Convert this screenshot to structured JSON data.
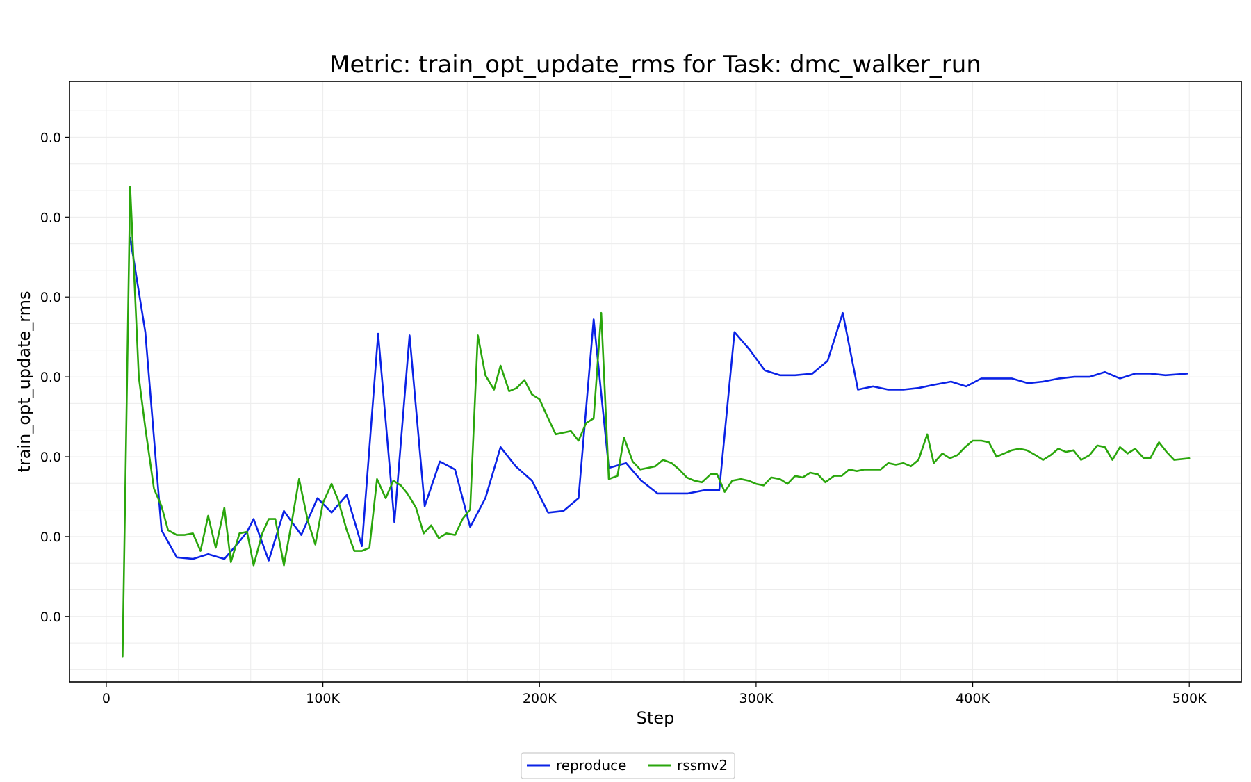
{
  "chart_data": {
    "type": "line",
    "title": "Metric: train_opt_update_rms for Task: dmc_walker_run",
    "xlabel": "Step",
    "ylabel": "train_opt_update_rms",
    "x_tick_values": [
      0,
      100000,
      200000,
      300000,
      400000,
      500000
    ],
    "x_tick_labels": [
      "0",
      "100K",
      "200K",
      "300K",
      "400K",
      "500K"
    ],
    "y_tick_values": [
      -0.5,
      0.0,
      0.5,
      1.0,
      1.5,
      2.0,
      2.5
    ],
    "y_tick_labels": [
      "0.0",
      "0.0",
      "0.0",
      "0.0",
      "0.0",
      "0.0",
      "0.0"
    ],
    "xlim": [
      -17000,
      524000
    ],
    "ylim": [
      -0.91,
      2.85
    ],
    "grid": true,
    "legend_position": "bottom-center",
    "series": [
      {
        "name": "reproduce",
        "color": "#0a22e6",
        "x": [
          11000,
          18000,
          25500,
          32500,
          40000,
          47000,
          54500,
          61500,
          65000,
          68000,
          75000,
          82000,
          90000,
          97500,
          104000,
          111000,
          118000,
          125500,
          133000,
          140000,
          147000,
          154000,
          161000,
          168000,
          175000,
          182000,
          189000,
          196500,
          204000,
          211000,
          218000,
          225000,
          232000,
          240000,
          247000,
          254500,
          261500,
          268500,
          276000,
          283000,
          290000,
          297000,
          304000,
          311000,
          318000,
          326000,
          333000,
          340000,
          347000,
          354000,
          361000,
          368000,
          375000,
          382000,
          390000,
          397000,
          404000,
          411000,
          418000,
          425500,
          432500,
          440000,
          447000,
          454000,
          461000,
          468000,
          475000,
          482000,
          489000,
          499000
        ],
        "y": [
          1.87,
          1.28,
          0.04,
          -0.13,
          -0.14,
          -0.11,
          -0.14,
          -0.03,
          0.03,
          0.11,
          -0.15,
          0.16,
          0.01,
          0.24,
          0.15,
          0.26,
          -0.06,
          1.27,
          0.09,
          1.26,
          0.19,
          0.47,
          0.42,
          0.06,
          0.24,
          0.56,
          0.44,
          0.35,
          0.15,
          0.16,
          0.24,
          1.36,
          0.43,
          0.46,
          0.35,
          0.27,
          0.27,
          0.27,
          0.29,
          0.29,
          1.28,
          1.17,
          1.04,
          1.01,
          1.01,
          1.02,
          1.1,
          1.4,
          0.92,
          0.94,
          0.92,
          0.92,
          0.93,
          0.95,
          0.97,
          0.94,
          0.99,
          0.99,
          0.99,
          0.96,
          0.97,
          0.99,
          1.0,
          1.0,
          1.03,
          0.99,
          1.02,
          1.02,
          1.01,
          1.02
        ]
      },
      {
        "name": "rssmv2",
        "color": "#2aa60c",
        "x": [
          7500,
          11000,
          15000,
          18000,
          22000,
          25500,
          28500,
          32500,
          36000,
          40000,
          43500,
          47000,
          50500,
          54500,
          57500,
          61500,
          65000,
          68000,
          72000,
          75000,
          78000,
          82000,
          85500,
          89000,
          93000,
          96500,
          100000,
          104000,
          107000,
          111000,
          114500,
          118000,
          121500,
          125000,
          129000,
          132500,
          136000,
          139000,
          143000,
          146500,
          150000,
          153500,
          157000,
          161000,
          164500,
          168000,
          171500,
          175000,
          179000,
          182000,
          186000,
          189500,
          193000,
          196500,
          200000,
          204000,
          207500,
          211000,
          214500,
          218000,
          221500,
          225000,
          228500,
          232000,
          236000,
          239000,
          243000,
          246500,
          250000,
          253500,
          257000,
          261000,
          264500,
          268000,
          271500,
          275000,
          279000,
          282000,
          285500,
          289000,
          293000,
          296500,
          300000,
          303500,
          307000,
          311000,
          314500,
          318000,
          321500,
          325000,
          328500,
          332000,
          336000,
          339500,
          343000,
          346500,
          350000,
          354000,
          357500,
          361000,
          364500,
          368000,
          371500,
          375000,
          379000,
          382000,
          386000,
          389500,
          393000,
          396500,
          400000,
          404000,
          407500,
          411000,
          414500,
          418000,
          421500,
          425000,
          429000,
          432500,
          436000,
          439500,
          443000,
          446500,
          450000,
          454000,
          457500,
          461000,
          464500,
          468000,
          471500,
          475000,
          479000,
          482000,
          486000,
          489500,
          493000,
          500000
        ],
        "y": [
          -0.75,
          2.19,
          1.0,
          0.68,
          0.3,
          0.19,
          0.04,
          0.01,
          0.01,
          0.02,
          -0.09,
          0.13,
          -0.07,
          0.18,
          -0.16,
          0.02,
          0.03,
          -0.18,
          0.02,
          0.11,
          0.11,
          -0.18,
          0.08,
          0.36,
          0.1,
          -0.05,
          0.21,
          0.33,
          0.23,
          0.04,
          -0.09,
          -0.09,
          -0.07,
          0.36,
          0.24,
          0.35,
          0.32,
          0.27,
          0.18,
          0.02,
          0.07,
          -0.01,
          0.02,
          0.01,
          0.11,
          0.17,
          1.26,
          1.01,
          0.92,
          1.07,
          0.91,
          0.93,
          0.98,
          0.89,
          0.86,
          0.74,
          0.64,
          0.65,
          0.66,
          0.6,
          0.71,
          0.74,
          1.4,
          0.36,
          0.38,
          0.62,
          0.47,
          0.42,
          0.43,
          0.44,
          0.48,
          0.46,
          0.42,
          0.37,
          0.35,
          0.34,
          0.39,
          0.39,
          0.28,
          0.35,
          0.36,
          0.35,
          0.33,
          0.32,
          0.37,
          0.36,
          0.33,
          0.38,
          0.37,
          0.4,
          0.39,
          0.34,
          0.38,
          0.38,
          0.42,
          0.41,
          0.42,
          0.42,
          0.42,
          0.46,
          0.45,
          0.46,
          0.44,
          0.48,
          0.64,
          0.46,
          0.52,
          0.49,
          0.51,
          0.56,
          0.6,
          0.6,
          0.59,
          0.5,
          0.52,
          0.54,
          0.55,
          0.54,
          0.51,
          0.48,
          0.51,
          0.55,
          0.53,
          0.54,
          0.48,
          0.51,
          0.57,
          0.56,
          0.48,
          0.56,
          0.52,
          0.55,
          0.49,
          0.49,
          0.59,
          0.53,
          0.48,
          0.49
        ]
      }
    ]
  }
}
